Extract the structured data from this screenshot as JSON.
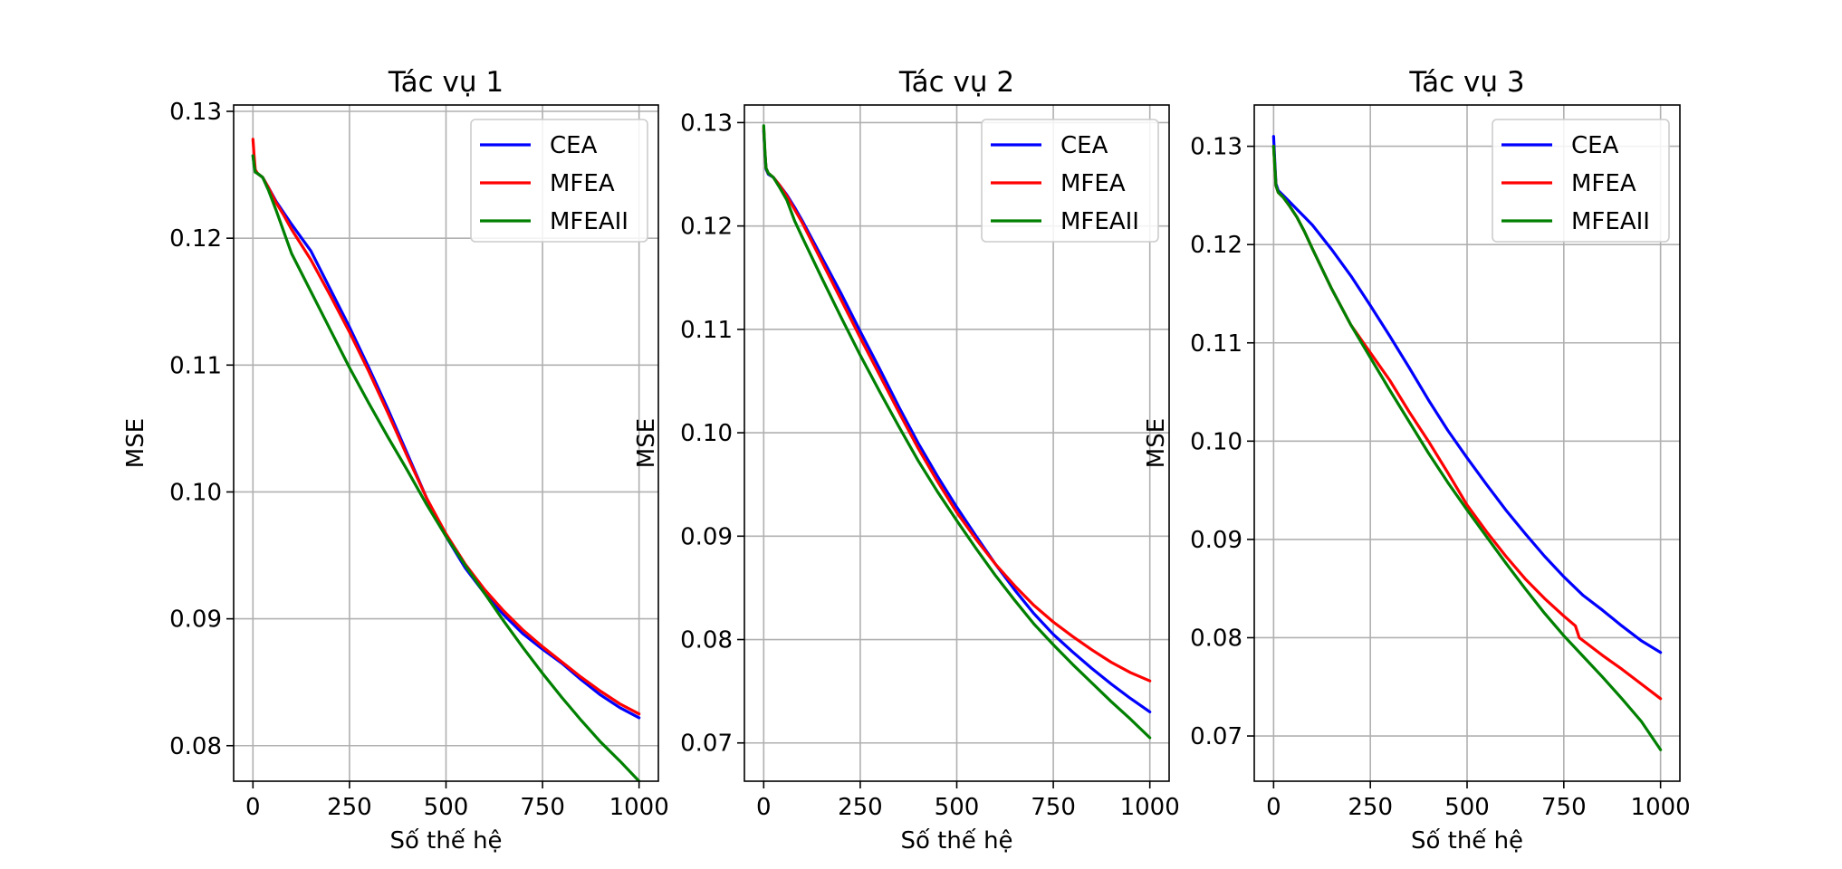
{
  "chart_data": [
    {
      "type": "line",
      "title": "Tác vụ 1",
      "xlabel": "Số thế hệ",
      "ylabel": "MSE",
      "xlim": [
        -50,
        1050
      ],
      "ylim": [
        0.0772,
        0.1305
      ],
      "xticks": [
        0,
        250,
        500,
        750,
        1000
      ],
      "xtick_labels": [
        "0",
        "250",
        "500",
        "750",
        "1000"
      ],
      "yticks": [
        0.08,
        0.09,
        0.1,
        0.11,
        0.12,
        0.13
      ],
      "ytick_labels": [
        "0.08",
        "0.09",
        "0.10",
        "0.11",
        "0.12",
        "0.13"
      ],
      "grid": true,
      "legend_position": "upper-right",
      "series": [
        {
          "name": "CEA",
          "color": "#0000ff",
          "x": [
            0,
            3,
            6,
            12,
            25,
            40,
            60,
            80,
            100,
            150,
            200,
            250,
            300,
            350,
            400,
            450,
            500,
            550,
            600,
            650,
            700,
            750,
            800,
            850,
            900,
            950,
            1000
          ],
          "y": [
            0.1265,
            0.1258,
            0.1253,
            0.1251,
            0.1248,
            0.124,
            0.1229,
            0.122,
            0.1211,
            0.119,
            0.116,
            0.113,
            0.1098,
            0.1065,
            0.103,
            0.0995,
            0.0965,
            0.094,
            0.092,
            0.0903,
            0.0888,
            0.0876,
            0.0865,
            0.0852,
            0.084,
            0.083,
            0.0822
          ]
        },
        {
          "name": "MFEA",
          "color": "#ff0000",
          "x": [
            0,
            3,
            6,
            12,
            25,
            40,
            60,
            80,
            100,
            150,
            200,
            250,
            300,
            350,
            400,
            450,
            500,
            550,
            600,
            650,
            700,
            750,
            800,
            850,
            900,
            950,
            1000
          ],
          "y": [
            0.1278,
            0.1265,
            0.1254,
            0.1251,
            0.1248,
            0.124,
            0.1228,
            0.1218,
            0.1207,
            0.1183,
            0.1155,
            0.1126,
            0.1095,
            0.1062,
            0.1028,
            0.0995,
            0.0967,
            0.0943,
            0.0923,
            0.0906,
            0.0891,
            0.0878,
            0.0866,
            0.0854,
            0.0843,
            0.0833,
            0.0825
          ]
        },
        {
          "name": "MFEAII",
          "color": "#008000",
          "x": [
            0,
            3,
            6,
            12,
            25,
            40,
            60,
            80,
            100,
            150,
            200,
            250,
            300,
            350,
            400,
            450,
            500,
            550,
            600,
            650,
            700,
            750,
            800,
            850,
            900,
            950,
            1000
          ],
          "y": [
            0.1265,
            0.1257,
            0.1252,
            0.1251,
            0.1248,
            0.1238,
            0.1222,
            0.1205,
            0.1188,
            0.1158,
            0.1128,
            0.1098,
            0.107,
            0.1043,
            0.1017,
            0.099,
            0.0965,
            0.0942,
            0.092,
            0.0898,
            0.0877,
            0.0857,
            0.0838,
            0.082,
            0.0803,
            0.0788,
            0.0772
          ]
        }
      ]
    },
    {
      "type": "line",
      "title": "Tác vụ 2",
      "xlabel": "Số thế hệ",
      "ylabel": "MSE",
      "xlim": [
        -50,
        1050
      ],
      "ylim": [
        0.0663,
        0.1317
      ],
      "xticks": [
        0,
        250,
        500,
        750,
        1000
      ],
      "xtick_labels": [
        "0",
        "250",
        "500",
        "750",
        "1000"
      ],
      "yticks": [
        0.07,
        0.08,
        0.09,
        0.1,
        0.11,
        0.12,
        0.13
      ],
      "ytick_labels": [
        "0.07",
        "0.08",
        "0.09",
        "0.10",
        "0.11",
        "0.12",
        "0.13"
      ],
      "grid": true,
      "legend_position": "upper-right",
      "series": [
        {
          "name": "CEA",
          "color": "#0000ff",
          "x": [
            0,
            3,
            6,
            12,
            25,
            40,
            60,
            80,
            100,
            150,
            200,
            250,
            300,
            350,
            400,
            450,
            500,
            550,
            600,
            650,
            700,
            750,
            800,
            850,
            900,
            950,
            1000
          ],
          "y": [
            0.1292,
            0.127,
            0.1255,
            0.125,
            0.1247,
            0.124,
            0.123,
            0.1218,
            0.1205,
            0.117,
            0.1135,
            0.1098,
            0.1062,
            0.1025,
            0.099,
            0.0958,
            0.0928,
            0.09,
            0.0873,
            0.0848,
            0.0825,
            0.0805,
            0.0788,
            0.0772,
            0.0757,
            0.0743,
            0.073
          ]
        },
        {
          "name": "MFEA",
          "color": "#ff0000",
          "x": [
            0,
            3,
            6,
            12,
            25,
            40,
            60,
            80,
            100,
            150,
            200,
            250,
            300,
            350,
            400,
            450,
            500,
            550,
            600,
            650,
            700,
            750,
            800,
            850,
            900,
            950,
            1000
          ],
          "y": [
            0.1295,
            0.1272,
            0.1256,
            0.1251,
            0.1247,
            0.124,
            0.1229,
            0.1216,
            0.1203,
            0.1166,
            0.1129,
            0.1092,
            0.1056,
            0.102,
            0.0985,
            0.0953,
            0.0923,
            0.0897,
            0.0873,
            0.0852,
            0.0833,
            0.0817,
            0.0803,
            0.079,
            0.0778,
            0.0768,
            0.076
          ]
        },
        {
          "name": "MFEAII",
          "color": "#008000",
          "x": [
            0,
            3,
            6,
            12,
            25,
            40,
            60,
            80,
            100,
            150,
            200,
            250,
            300,
            350,
            400,
            450,
            500,
            550,
            600,
            650,
            700,
            750,
            800,
            850,
            900,
            950,
            1000
          ],
          "y": [
            0.1297,
            0.1273,
            0.1256,
            0.1251,
            0.1247,
            0.1238,
            0.1225,
            0.1205,
            0.1189,
            0.115,
            0.1112,
            0.1075,
            0.104,
            0.1006,
            0.0973,
            0.0943,
            0.0915,
            0.0888,
            0.0862,
            0.0838,
            0.0815,
            0.0795,
            0.0776,
            0.0758,
            0.074,
            0.0723,
            0.0705
          ]
        }
      ]
    },
    {
      "type": "line",
      "title": "Tác vụ 3",
      "xlabel": "Số thế hệ",
      "ylabel": "MSE",
      "xlim": [
        -50,
        1050
      ],
      "ylim": [
        0.0654,
        0.1342
      ],
      "xticks": [
        0,
        250,
        500,
        750,
        1000
      ],
      "xtick_labels": [
        "0",
        "250",
        "500",
        "750",
        "1000"
      ],
      "yticks": [
        0.07,
        0.08,
        0.09,
        0.1,
        0.11,
        0.12,
        0.13
      ],
      "ytick_labels": [
        "0.07",
        "0.08",
        "0.09",
        "0.10",
        "0.11",
        "0.12",
        "0.13"
      ],
      "grid": true,
      "legend_position": "upper-right",
      "series": [
        {
          "name": "CEA",
          "color": "#0000ff",
          "x": [
            0,
            3,
            6,
            12,
            25,
            40,
            60,
            80,
            100,
            150,
            200,
            250,
            300,
            350,
            400,
            450,
            500,
            550,
            600,
            650,
            700,
            750,
            800,
            850,
            900,
            950,
            1000
          ],
          "y": [
            0.131,
            0.1285,
            0.1262,
            0.1255,
            0.125,
            0.1244,
            0.1236,
            0.1228,
            0.122,
            0.1195,
            0.1168,
            0.1138,
            0.1107,
            0.1075,
            0.1042,
            0.1011,
            0.0983,
            0.0956,
            0.093,
            0.0906,
            0.0883,
            0.0862,
            0.0843,
            0.0828,
            0.0812,
            0.0797,
            0.0785
          ]
        },
        {
          "name": "MFEA",
          "color": "#ff0000",
          "x": [
            0,
            3,
            6,
            12,
            25,
            40,
            60,
            80,
            100,
            150,
            200,
            250,
            300,
            350,
            400,
            450,
            500,
            550,
            600,
            650,
            700,
            750,
            780,
            790,
            800,
            850,
            900,
            950,
            1000
          ],
          "y": [
            0.13,
            0.128,
            0.126,
            0.1253,
            0.1248,
            0.124,
            0.1228,
            0.1213,
            0.1196,
            0.1155,
            0.1118,
            0.109,
            0.1062,
            0.103,
            0.1,
            0.0968,
            0.0935,
            0.0908,
            0.0883,
            0.086,
            0.084,
            0.0822,
            0.0812,
            0.08,
            0.0797,
            0.0782,
            0.0768,
            0.0753,
            0.0738
          ]
        },
        {
          "name": "MFEAII",
          "color": "#008000",
          "x": [
            0,
            3,
            6,
            12,
            25,
            40,
            60,
            80,
            100,
            150,
            200,
            250,
            300,
            350,
            400,
            450,
            500,
            550,
            600,
            650,
            700,
            750,
            800,
            850,
            900,
            950,
            1000
          ],
          "y": [
            0.13,
            0.128,
            0.126,
            0.1253,
            0.1248,
            0.124,
            0.1228,
            0.1213,
            0.1196,
            0.1155,
            0.1118,
            0.1085,
            0.1052,
            0.102,
            0.0988,
            0.0958,
            0.093,
            0.0903,
            0.0876,
            0.085,
            0.0825,
            0.0802,
            0.0781,
            0.076,
            0.0738,
            0.0715,
            0.0686
          ]
        }
      ]
    }
  ]
}
